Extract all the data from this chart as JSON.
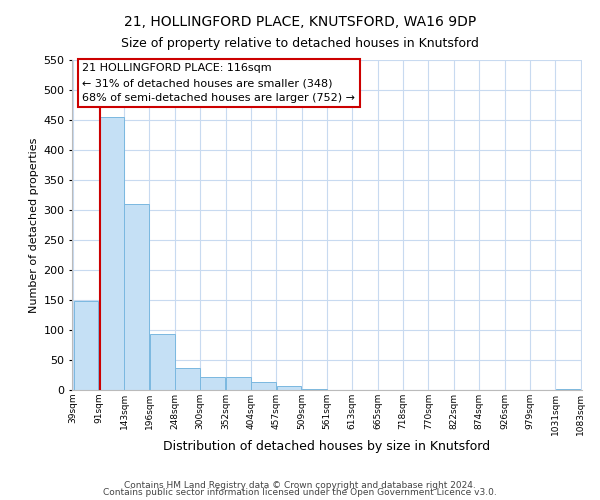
{
  "title": "21, HOLLINGFORD PLACE, KNUTSFORD, WA16 9DP",
  "subtitle": "Size of property relative to detached houses in Knutsford",
  "xlabel": "Distribution of detached houses by size in Knutsford",
  "ylabel": "Number of detached properties",
  "bar_values": [
    148,
    455,
    310,
    93,
    37,
    22,
    22,
    13,
    7,
    1,
    0,
    0,
    0,
    0,
    0,
    0,
    0,
    0,
    0,
    2
  ],
  "bar_labels": [
    "39sqm",
    "91sqm",
    "143sqm",
    "196sqm",
    "248sqm",
    "300sqm",
    "352sqm",
    "404sqm",
    "457sqm",
    "509sqm",
    "561sqm",
    "613sqm",
    "665sqm",
    "718sqm",
    "770sqm",
    "822sqm",
    "874sqm",
    "926sqm",
    "979sqm",
    "1031sqm",
    "1083sqm"
  ],
  "bar_color": "#c5e0f5",
  "bar_edge_color": "#7ab8e0",
  "vline_color": "#cc0000",
  "vline_x": 0.57,
  "ylim": [
    0,
    550
  ],
  "yticks": [
    0,
    50,
    100,
    150,
    200,
    250,
    300,
    350,
    400,
    450,
    500,
    550
  ],
  "annotation_title": "21 HOLLINGFORD PLACE: 116sqm",
  "annotation_line1": "← 31% of detached houses are smaller (348)",
  "annotation_line2": "68% of semi-detached houses are larger (752) →",
  "footer1": "Contains HM Land Registry data © Crown copyright and database right 2024.",
  "footer2": "Contains public sector information licensed under the Open Government Licence v3.0.",
  "bg_color": "#ffffff",
  "grid_color": "#c8daf0",
  "num_bars": 20
}
